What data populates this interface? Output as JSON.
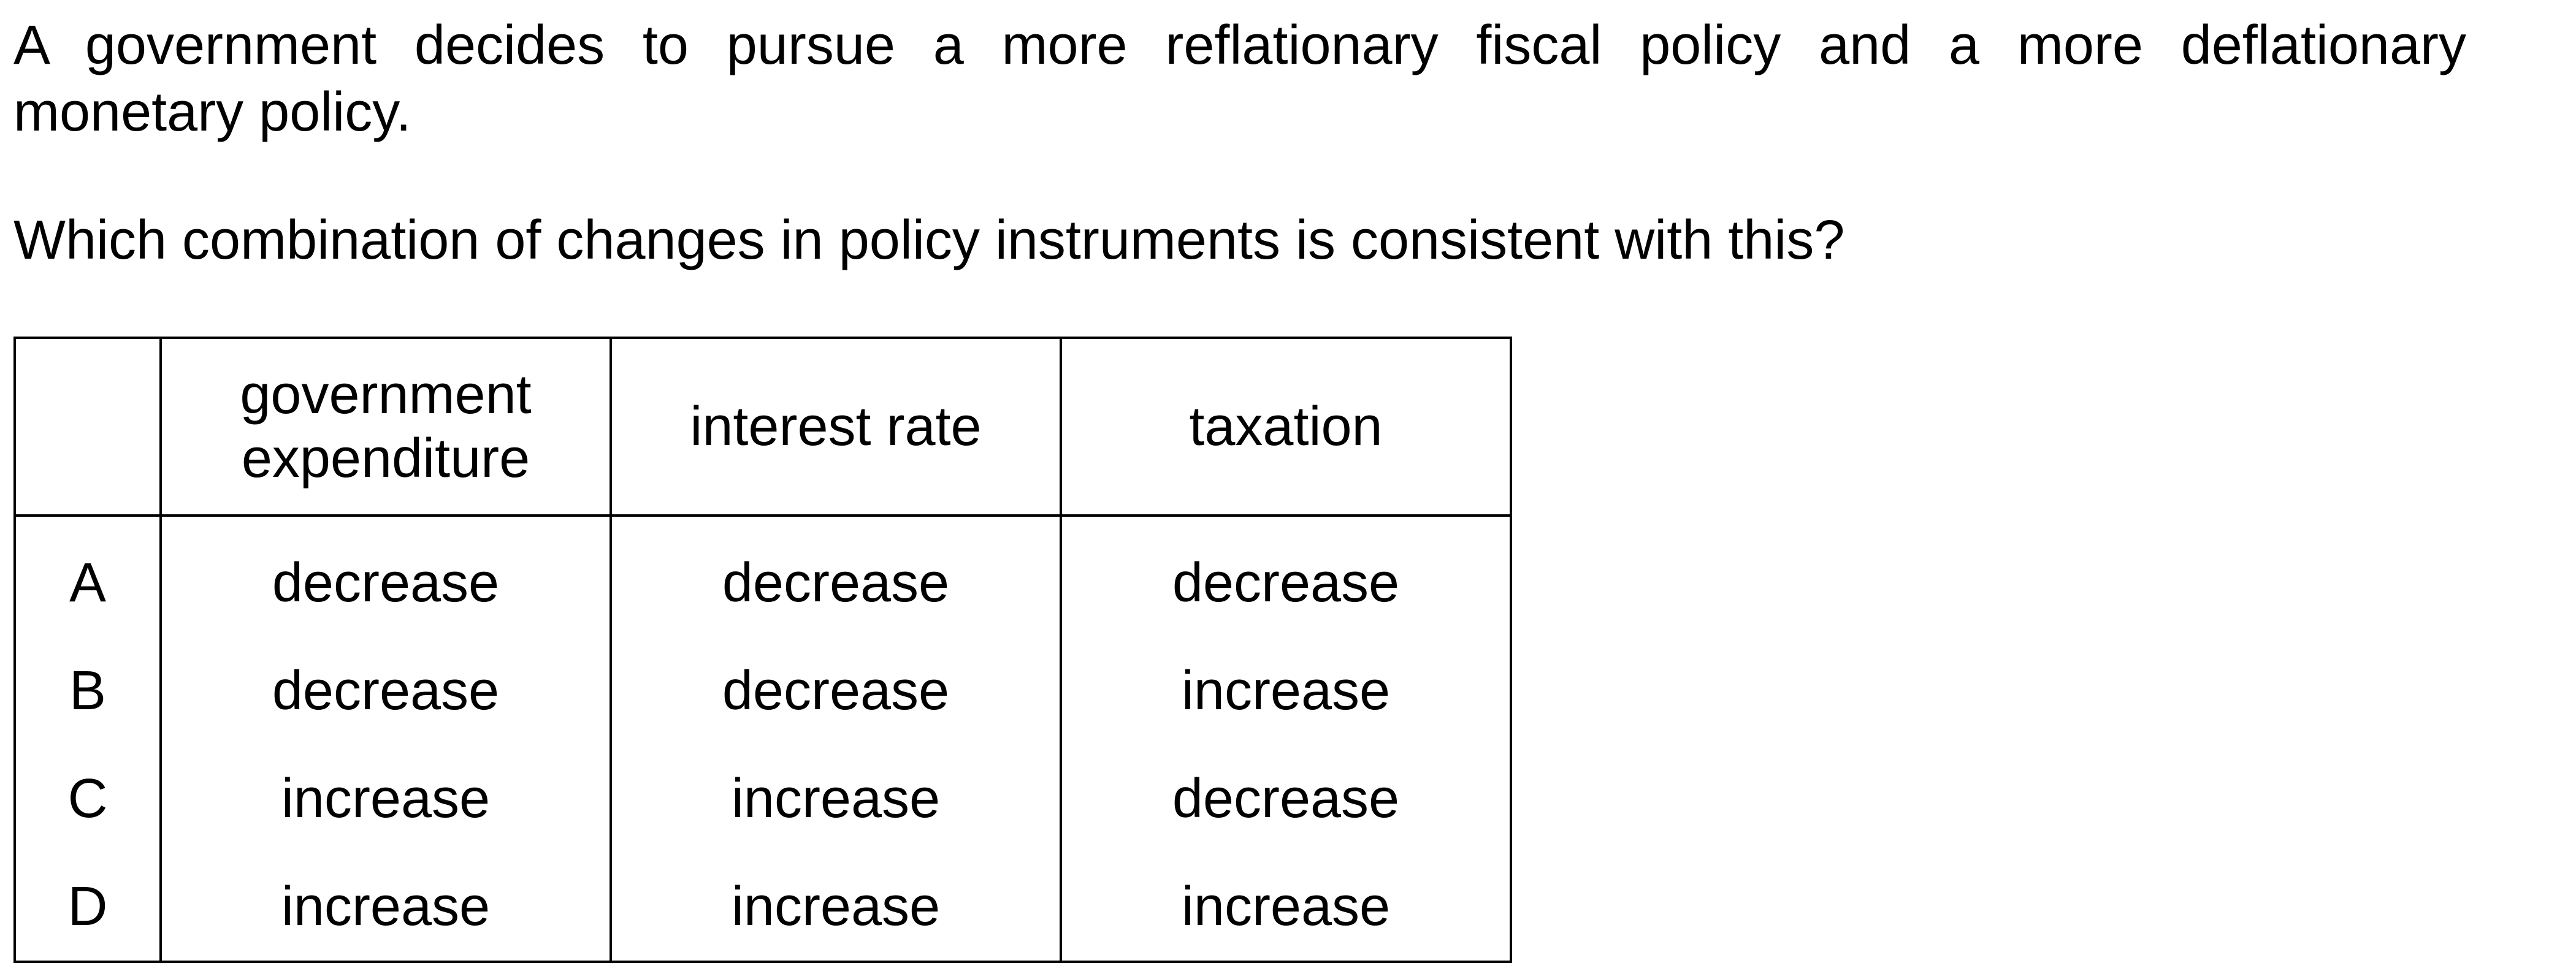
{
  "question": {
    "stem_line1": "A government decides to pursue a more reflationary fiscal policy and a more deflationary",
    "stem_line2": "monetary policy.",
    "prompt": "Which combination of changes in policy instruments is consistent with this?"
  },
  "table": {
    "headers": [
      "",
      "government expenditure",
      "interest rate",
      "taxation"
    ],
    "rows": [
      {
        "letter": "A",
        "government_expenditure": "decrease",
        "interest_rate": "decrease",
        "taxation": "decrease"
      },
      {
        "letter": "B",
        "government_expenditure": "decrease",
        "interest_rate": "decrease",
        "taxation": "increase"
      },
      {
        "letter": "C",
        "government_expenditure": "increase",
        "interest_rate": "increase",
        "taxation": "decrease"
      },
      {
        "letter": "D",
        "government_expenditure": "increase",
        "interest_rate": "increase",
        "taxation": "increase"
      }
    ]
  }
}
